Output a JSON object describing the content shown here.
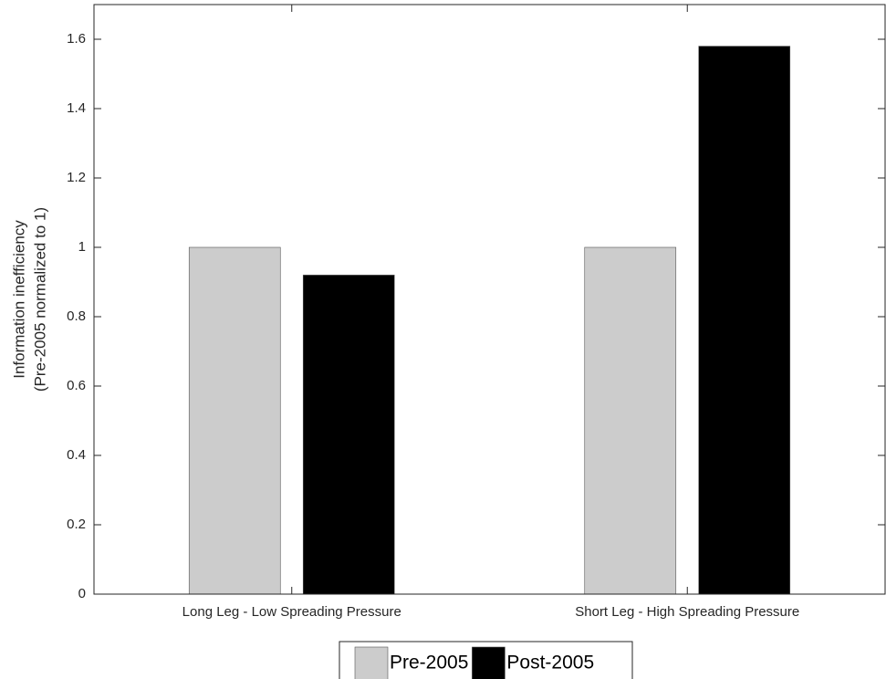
{
  "chart_data": {
    "type": "bar",
    "ylabel": [
      "Information inefficiency",
      "(Pre-2005 normalized to 1)"
    ],
    "categories": [
      "Long Leg - Low Spreading Pressure",
      "Short Leg - High Spreading Pressure"
    ],
    "series": [
      {
        "name": "Pre-2005",
        "color": "#cccccc",
        "values": [
          1,
          1
        ]
      },
      {
        "name": "Post-2005",
        "color": "#000000",
        "values": [
          0.92,
          1.58
        ]
      }
    ],
    "ylim": [
      0,
      1.7
    ],
    "yticks": [
      0,
      0.2,
      0.4,
      0.6,
      0.8,
      1,
      1.2,
      1.4,
      1.6
    ],
    "grid": false
  }
}
